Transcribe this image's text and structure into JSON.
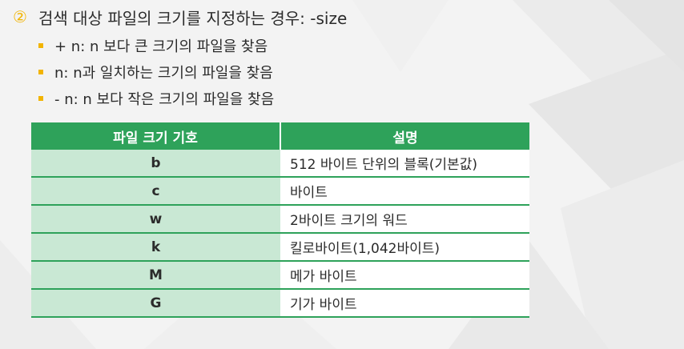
{
  "heading": {
    "number": "②",
    "text": "검색 대상 파일의 크기를 지정하는 경우: -size"
  },
  "bullets": [
    "+ n: n 보다 큰 크기의 파일을 찾음",
    "n: n과 일치하는 크기의 파일을 찾음",
    "- n: n 보다 작은 크기의 파일을 찾음"
  ],
  "table": {
    "headers": [
      "파일 크기 기호",
      "설명"
    ],
    "rows": [
      {
        "symbol": "b",
        "description": "512 바이트 단위의 블록(기본값)"
      },
      {
        "symbol": "c",
        "description": "바이트"
      },
      {
        "symbol": "w",
        "description": "2바이트 크기의 워드"
      },
      {
        "symbol": "k",
        "description": "킬로바이트(1,042바이트)"
      },
      {
        "symbol": "M",
        "description": "메가 바이트"
      },
      {
        "symbol": "G",
        "description": "기가 바이트"
      }
    ]
  },
  "colors": {
    "accent": "#f2b400",
    "header_green": "#2ea25a",
    "key_cell": "#c9e8d4"
  }
}
